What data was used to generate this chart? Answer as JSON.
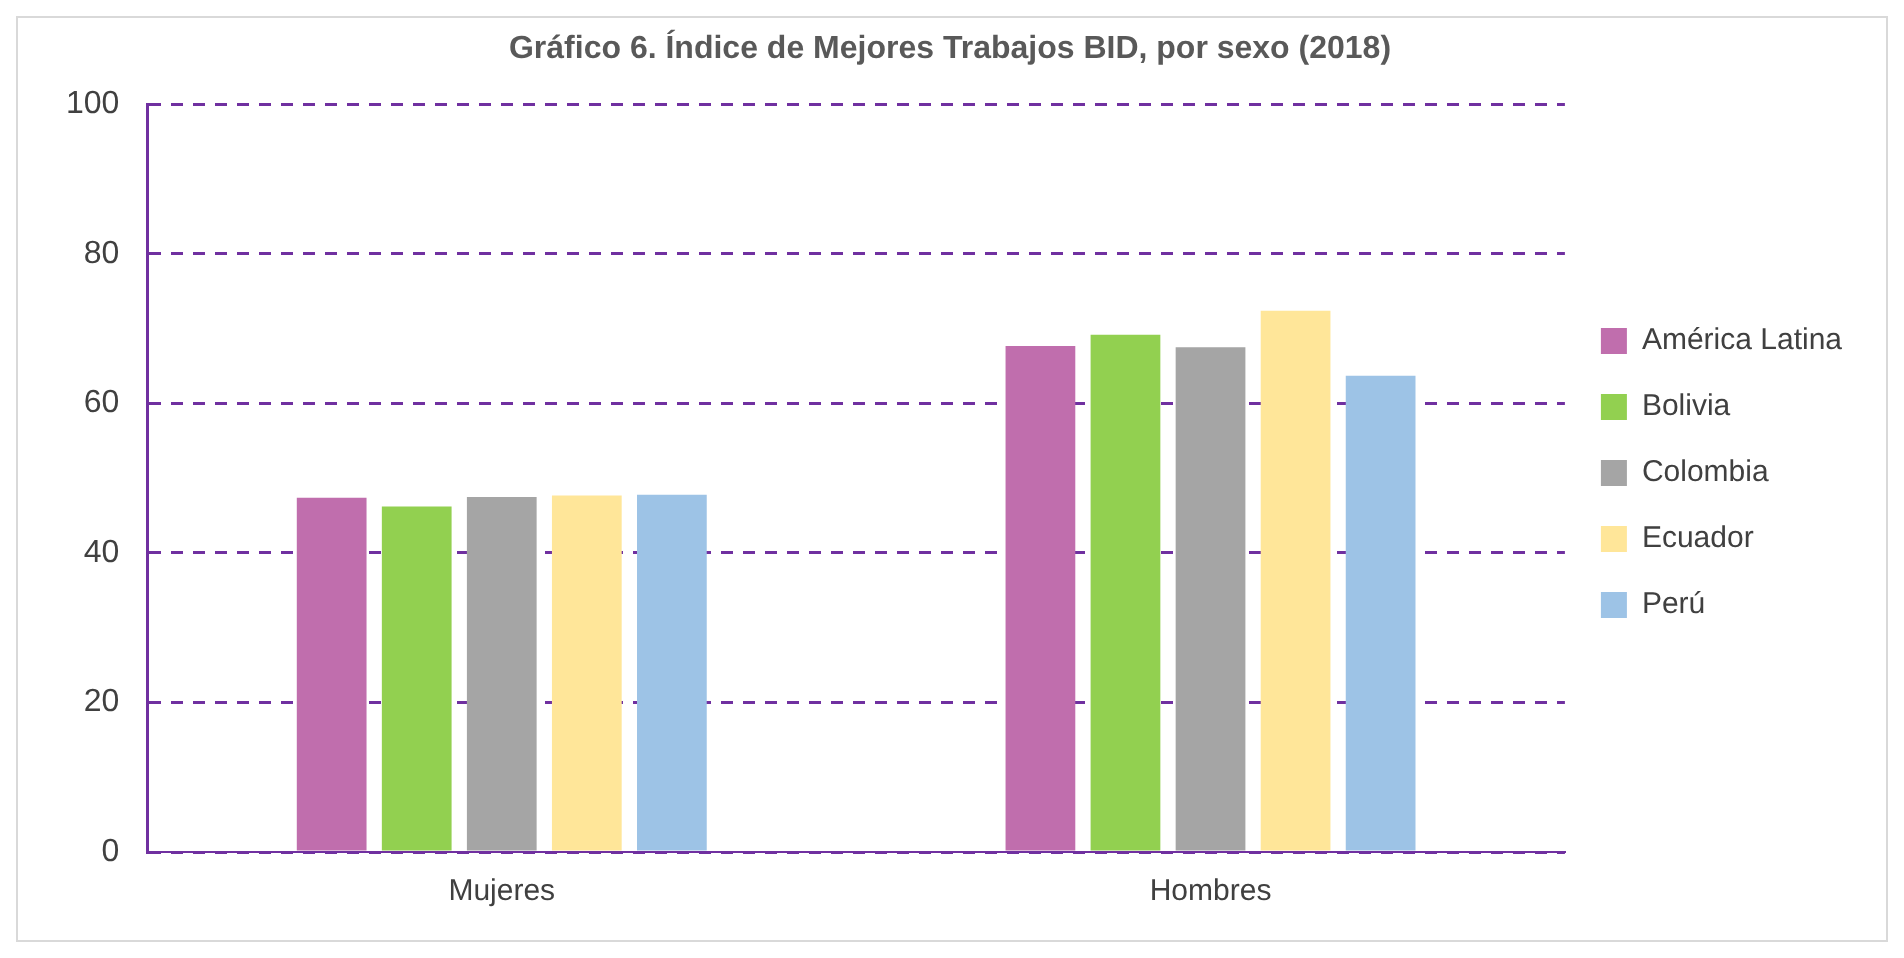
{
  "chart_data": {
    "type": "bar",
    "title": "Gráfico 6. Índice de Mejores Trabajos BID, por sexo (2018)",
    "categories": [
      "Mujeres",
      "Hombres"
    ],
    "series": [
      {
        "name": "América Latina",
        "color": "#c06ead",
        "values": [
          47.4,
          67.7
        ]
      },
      {
        "name": "Bolivia",
        "color": "#92d050",
        "values": [
          46.2,
          69.2
        ]
      },
      {
        "name": "Colombia",
        "color": "#a5a5a5",
        "values": [
          47.5,
          67.5
        ]
      },
      {
        "name": "Ecuador",
        "color": "#ffe699",
        "values": [
          47.7,
          72.4
        ]
      },
      {
        "name": "Perú",
        "color": "#9dc3e6",
        "values": [
          47.8,
          63.7
        ]
      }
    ],
    "ylim": [
      0,
      100
    ],
    "yticks": [
      0,
      20,
      40,
      60,
      80,
      100
    ],
    "grid": "y",
    "legend": "right"
  }
}
